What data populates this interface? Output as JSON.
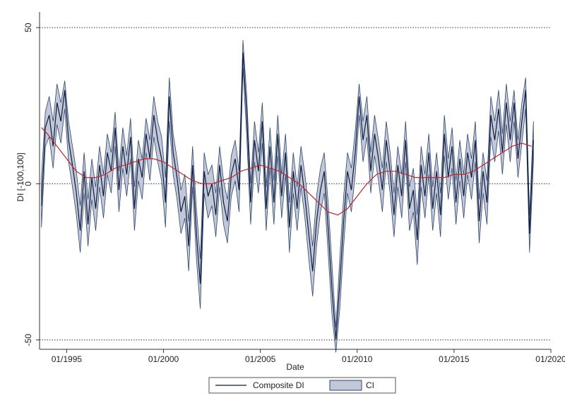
{
  "chart_data": {
    "type": "line",
    "xlabel": "Date",
    "ylabel": "DI [-100,100]",
    "xlim": [
      1993.6,
      2020.0
    ],
    "ylim": [
      -53,
      55
    ],
    "x_ticks": [
      {
        "value": 1995,
        "label": "01/1995"
      },
      {
        "value": 2000,
        "label": "01/2000"
      },
      {
        "value": 2005,
        "label": "01/2005"
      },
      {
        "value": 2010,
        "label": "01/2010"
      },
      {
        "value": 2015,
        "label": "01/2015"
      },
      {
        "value": 2020,
        "label": "01/2020"
      }
    ],
    "y_ticks": [
      {
        "value": 50,
        "label": "50"
      },
      {
        "value": 0,
        "label": "0"
      },
      {
        "value": -50,
        "label": "-50"
      }
    ],
    "grid": "horizontal dotted at y ticks",
    "legend": {
      "placement": "bottom-center",
      "entries": [
        "Composite DI",
        "CI"
      ]
    },
    "colors": {
      "series": "#0d1b3e",
      "band_fill": "#c2c8d8",
      "band_edge": "#2e4770",
      "trend": "#c0262b",
      "grid": "#333333"
    },
    "series": [
      {
        "name": "Composite DI",
        "x": [
          1993.7,
          1993.9,
          1994.1,
          1994.3,
          1994.5,
          1994.7,
          1994.9,
          1995.1,
          1995.3,
          1995.5,
          1995.7,
          1995.9,
          1996.1,
          1996.3,
          1996.5,
          1996.7,
          1996.9,
          1997.1,
          1997.3,
          1997.5,
          1997.7,
          1997.9,
          1998.1,
          1998.3,
          1998.5,
          1998.7,
          1998.9,
          1999.1,
          1999.3,
          1999.5,
          1999.7,
          1999.9,
          2000.1,
          2000.3,
          2000.5,
          2000.7,
          2000.9,
          2001.1,
          2001.3,
          2001.5,
          2001.7,
          2001.9,
          2002.1,
          2002.3,
          2002.5,
          2002.7,
          2002.9,
          2003.1,
          2003.3,
          2003.5,
          2003.7,
          2003.9,
          2004.1,
          2004.3,
          2004.5,
          2004.7,
          2004.9,
          2005.1,
          2005.3,
          2005.5,
          2005.7,
          2005.9,
          2006.1,
          2006.3,
          2006.5,
          2006.7,
          2006.9,
          2007.1,
          2007.3,
          2007.5,
          2007.7,
          2007.9,
          2008.1,
          2008.3,
          2008.5,
          2008.7,
          2008.9,
          2009.1,
          2009.3,
          2009.5,
          2009.7,
          2009.9,
          2010.1,
          2010.3,
          2010.5,
          2010.7,
          2010.9,
          2011.1,
          2011.3,
          2011.5,
          2011.7,
          2011.9,
          2012.1,
          2012.3,
          2012.5,
          2012.7,
          2012.9,
          2013.1,
          2013.3,
          2013.5,
          2013.7,
          2013.9,
          2014.1,
          2014.3,
          2014.5,
          2014.7,
          2014.9,
          2015.1,
          2015.3,
          2015.5,
          2015.7,
          2015.9,
          2016.1,
          2016.3,
          2016.5,
          2016.7,
          2016.9,
          2017.1,
          2017.3,
          2017.5,
          2017.7,
          2017.9,
          2018.1,
          2018.3,
          2018.5,
          2018.7,
          2018.9,
          2019.1
        ],
        "y": [
          -7,
          18,
          22,
          12,
          26,
          20,
          30,
          14,
          6,
          -3,
          -15,
          4,
          -13,
          2,
          -8,
          6,
          -4,
          10,
          4,
          18,
          -2,
          12,
          3,
          15,
          -8,
          8,
          2,
          16,
          8,
          22,
          14,
          8,
          -6,
          28,
          10,
          2,
          -9,
          -4,
          -20,
          6,
          -16,
          -32,
          4,
          -4,
          0,
          -10,
          6,
          -6,
          -12,
          3,
          8,
          -2,
          42,
          22,
          -6,
          14,
          4,
          20,
          -8,
          12,
          -6,
          16,
          -4,
          10,
          -14,
          4,
          -8,
          6,
          -4,
          -16,
          -28,
          -12,
          -2,
          4,
          -14,
          -34,
          -50,
          -32,
          -12,
          4,
          -2,
          10,
          28,
          14,
          22,
          4,
          16,
          8,
          -2,
          14,
          4,
          -10,
          6,
          -4,
          14,
          -8,
          -2,
          -18,
          6,
          -4,
          10,
          -8,
          4,
          -10,
          16,
          2,
          12,
          -6,
          8,
          -4,
          10,
          2,
          14,
          -12,
          4,
          -6,
          22,
          14,
          24,
          10,
          26,
          14,
          26,
          8,
          20,
          30,
          -16,
          14
        ]
      },
      {
        "name": "CI",
        "upper": [
          2,
          23,
          28,
          20,
          32,
          26,
          33,
          20,
          12,
          4,
          -7,
          10,
          -5,
          8,
          -1,
          12,
          3,
          16,
          10,
          23,
          4,
          18,
          9,
          21,
          -1,
          14,
          8,
          21,
          14,
          28,
          20,
          15,
          2,
          34,
          16,
          8,
          -2,
          3,
          -12,
          12,
          -8,
          -24,
          10,
          3,
          6,
          -3,
          12,
          1,
          -5,
          9,
          14,
          4,
          46,
          28,
          0,
          20,
          10,
          26,
          -1,
          18,
          1,
          22,
          3,
          16,
          -6,
          10,
          -1,
          12,
          3,
          -8,
          -20,
          -4,
          5,
          10,
          -6,
          -26,
          -46,
          -24,
          -4,
          10,
          5,
          17,
          32,
          20,
          28,
          10,
          22,
          14,
          5,
          20,
          10,
          -3,
          12,
          3,
          20,
          -1,
          5,
          -10,
          12,
          3,
          16,
          -1,
          10,
          -3,
          22,
          8,
          18,
          1,
          14,
          3,
          16,
          8,
          20,
          -5,
          10,
          1,
          28,
          20,
          30,
          16,
          32,
          20,
          30,
          14,
          26,
          34,
          -10,
          20
        ],
        "lower": [
          -14,
          12,
          15,
          5,
          19,
          13,
          24,
          7,
          -1,
          -10,
          -22,
          -3,
          -20,
          -5,
          -15,
          -1,
          -11,
          3,
          -3,
          12,
          -9,
          5,
          -4,
          8,
          -15,
          1,
          -5,
          10,
          1,
          15,
          7,
          1,
          -14,
          20,
          3,
          -5,
          -16,
          -11,
          -28,
          -1,
          -24,
          -40,
          -3,
          -11,
          -7,
          -17,
          -1,
          -13,
          -19,
          -4,
          1,
          -9,
          37,
          15,
          -13,
          7,
          -3,
          13,
          -15,
          5,
          -13,
          9,
          -11,
          3,
          -22,
          -3,
          -15,
          -1,
          -11,
          -24,
          -36,
          -20,
          -9,
          -3,
          -22,
          -42,
          -54,
          -40,
          -20,
          -3,
          -9,
          3,
          22,
          7,
          15,
          -3,
          9,
          1,
          -9,
          7,
          -3,
          -17,
          -1,
          -11,
          7,
          -15,
          -9,
          -26,
          -1,
          -11,
          3,
          -15,
          -3,
          -17,
          9,
          -5,
          5,
          -13,
          1,
          -11,
          3,
          -5,
          7,
          -19,
          -3,
          -13,
          15,
          7,
          17,
          3,
          19,
          7,
          20,
          2,
          13,
          24,
          -22,
          7
        ]
      },
      {
        "name": "trend",
        "x": [
          1993.7,
          1994.0,
          1994.5,
          1995.0,
          1995.5,
          1996.0,
          1996.5,
          1997.0,
          1997.5,
          1998.0,
          1998.5,
          1999.0,
          1999.5,
          2000.0,
          2000.5,
          2001.0,
          2001.5,
          2002.0,
          2002.5,
          2003.0,
          2003.5,
          2004.0,
          2004.5,
          2005.0,
          2005.5,
          2006.0,
          2006.5,
          2007.0,
          2007.5,
          2008.0,
          2008.5,
          2009.0,
          2009.5,
          2010.0,
          2010.5,
          2011.0,
          2011.5,
          2012.0,
          2012.5,
          2013.0,
          2013.5,
          2014.0,
          2014.5,
          2015.0,
          2015.5,
          2016.0,
          2016.5,
          2017.0,
          2017.5,
          2018.0,
          2018.5,
          2019.0
        ],
        "y": [
          18,
          16,
          12,
          8,
          4,
          2,
          2,
          3,
          5,
          6,
          7,
          8,
          8,
          7,
          5,
          3,
          1,
          0,
          0,
          1,
          2,
          4,
          5,
          6,
          5,
          4,
          2,
          0,
          -3,
          -6,
          -9,
          -10,
          -8,
          -4,
          0,
          3,
          4,
          4,
          3,
          2,
          2,
          2,
          2,
          3,
          3,
          4,
          6,
          8,
          10,
          12,
          13,
          12
        ]
      }
    ]
  }
}
